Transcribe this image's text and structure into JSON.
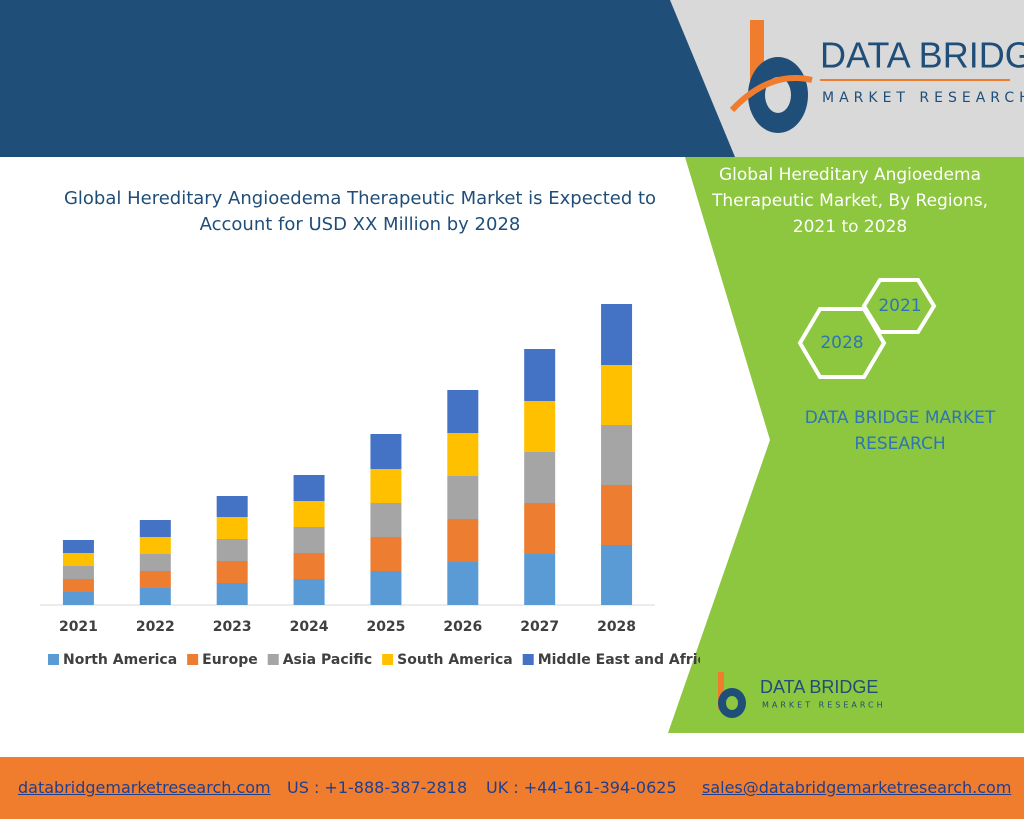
{
  "header": {
    "logo_name": "DATA BRIDGE",
    "logo_tagline": "MARKET RESEARCH"
  },
  "chart_data": {
    "type": "stacked_bar",
    "title": "Global Hereditary Angioedema Therapeutic Market is Expected to Account for USD XX Million by 2028",
    "categories": [
      "2021",
      "2022",
      "2023",
      "2024",
      "2025",
      "2026",
      "2027",
      "2028"
    ],
    "series": [
      {
        "name": "North America",
        "color": "#5b9bd5",
        "values": [
          13,
          17,
          22,
          26,
          34,
          43,
          51,
          60
        ]
      },
      {
        "name": "Europe",
        "color": "#ed7d31",
        "values": [
          13,
          17,
          22,
          26,
          34,
          43,
          51,
          60
        ]
      },
      {
        "name": "Asia Pacific",
        "color": "#a5a5a5",
        "values": [
          13,
          17,
          22,
          26,
          34,
          43,
          51,
          60
        ]
      },
      {
        "name": "South America",
        "color": "#ffc000",
        "values": [
          13,
          17,
          22,
          26,
          34,
          43,
          51,
          60
        ]
      },
      {
        "name": "Middle East and Africa",
        "color": "#4472c4",
        "values": [
          13,
          17,
          21,
          26,
          35,
          43,
          52,
          61
        ]
      }
    ],
    "ylim": [
      0,
      300
    ],
    "legend": "bottom"
  },
  "sidebar": {
    "title": "Global Hereditary Angioedema Therapeutic Market, By Regions, 2021 to 2028",
    "hex_1": "2021",
    "hex_2": "2028",
    "brand": "DATA BRIDGE MARKET RESEARCH",
    "logo_name": "DATA BRIDGE",
    "logo_tagline": "MARKET RESEARCH"
  },
  "footer": {
    "website": "databridgemarketresearch.com",
    "us": "US : +1-888-387-2818",
    "uk": "UK : +44-161-394-0625",
    "email": "sales@databridgemarketresearch.com"
  }
}
